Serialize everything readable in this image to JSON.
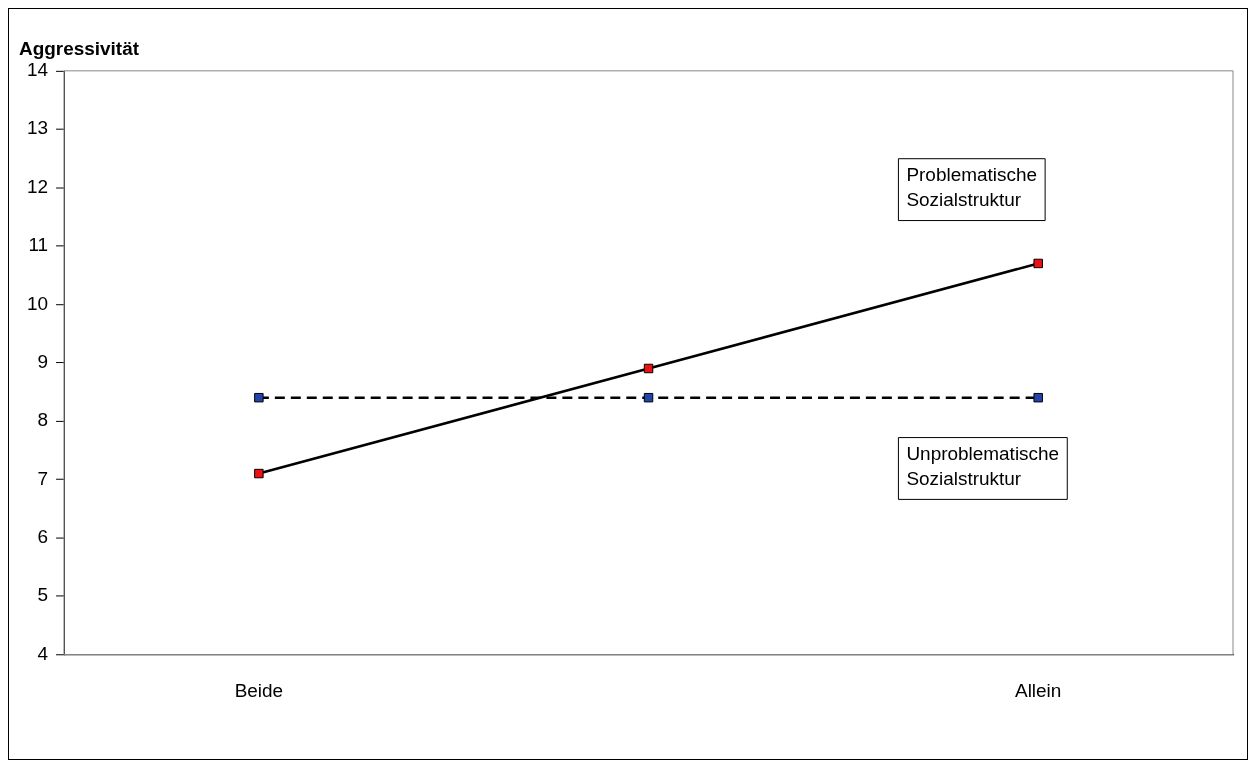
{
  "chart_data": {
    "type": "line",
    "ylabel": "Aggressivität",
    "categories": [
      "Beide",
      null,
      "Allein"
    ],
    "series": [
      {
        "name": "Problematische Sozialstruktur",
        "color": "#ee1111",
        "values": [
          7.1,
          8.9,
          10.7
        ],
        "line_style": "solid"
      },
      {
        "name": "Unproblematische Sozialstruktur",
        "color": "#2244aa",
        "values": [
          8.4,
          8.4,
          8.4
        ],
        "line_style": "dashed"
      }
    ],
    "ylim": [
      4,
      14
    ],
    "yticks": [
      4,
      5,
      6,
      7,
      8,
      9,
      10,
      11,
      12,
      13,
      14
    ],
    "marker": "square",
    "legend": false
  }
}
